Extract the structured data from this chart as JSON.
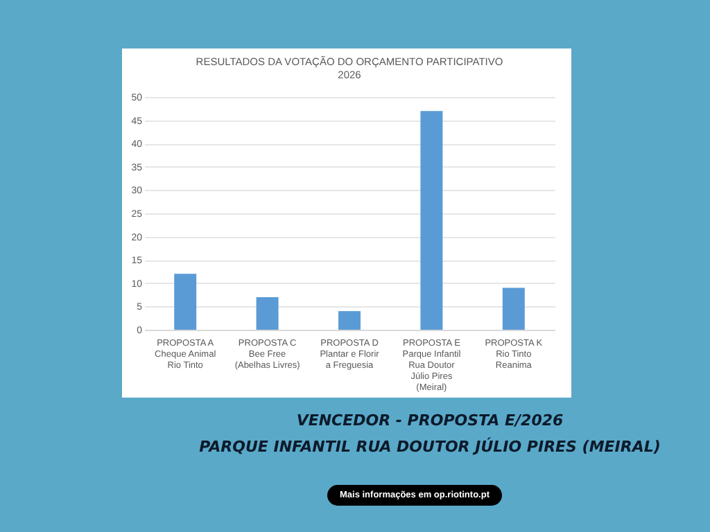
{
  "chart_data": {
    "type": "bar",
    "title": "RESULTADOS DA VOTAÇÃO DO ORÇAMENTO PARTICIPATIVO 2026",
    "categories": [
      "PROPOSTA A\nCheque Animal\nRio Tinto",
      "PROPOSTA C\nBee Free\n(Abelhas Livres)",
      "PROPOSTA D\nPlantar e Florir\na Freguesia",
      "PROPOSTA E\nParque Infantil\nRua Doutor\nJúlio Pires\n(Meiral)",
      "PROPOSTA K\nRio Tinto\nReanima"
    ],
    "values": [
      12,
      7,
      4,
      47,
      9
    ],
    "color": "#5b9bd5",
    "ylim": [
      0,
      50
    ],
    "yticks": [
      0,
      5,
      10,
      15,
      20,
      25,
      30,
      35,
      40,
      45,
      50
    ],
    "grid": "y",
    "annotations": [
      "VENCEDOR - PROPOSTA E/2026",
      "PARQUE INFANTIL RUA DOUTOR JÚLIO PIRES (MEIRAL)",
      "Mais informações em op.riotinto.pt"
    ]
  }
}
